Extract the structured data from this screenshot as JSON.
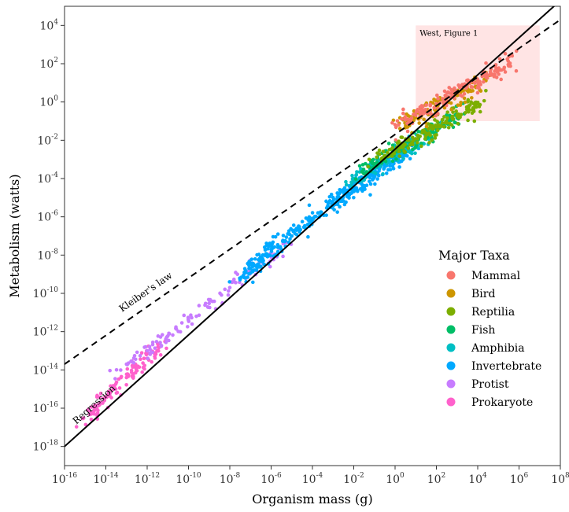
{
  "chart_data": {
    "type": "scatter",
    "xlabel": "Organism mass (g)",
    "ylabel": "Metabolism (watts)",
    "x_scale": "log10",
    "y_scale": "log10",
    "xlim": [
      1e-16,
      100000000.0
    ],
    "ylim": [
      1e-19,
      100000.0
    ],
    "x_ticks": [
      {
        "base": "10",
        "exp": "-16",
        "value": 1e-16
      },
      {
        "base": "10",
        "exp": "-14",
        "value": 1e-14
      },
      {
        "base": "10",
        "exp": "-12",
        "value": 1e-12
      },
      {
        "base": "10",
        "exp": "-10",
        "value": 1e-10
      },
      {
        "base": "10",
        "exp": "-8",
        "value": 1e-08
      },
      {
        "base": "10",
        "exp": "-6",
        "value": 1e-06
      },
      {
        "base": "10",
        "exp": "-4",
        "value": 0.0001
      },
      {
        "base": "10",
        "exp": "-2",
        "value": 0.01
      },
      {
        "base": "10",
        "exp": "0",
        "value": 1
      },
      {
        "base": "10",
        "exp": "2",
        "value": 100.0
      },
      {
        "base": "10",
        "exp": "4",
        "value": 10000.0
      },
      {
        "base": "10",
        "exp": "6",
        "value": 1000000.0
      },
      {
        "base": "10",
        "exp": "8",
        "value": 100000000.0
      }
    ],
    "y_ticks": [
      {
        "base": "10",
        "exp": "-18",
        "value": 1e-18
      },
      {
        "base": "10",
        "exp": "-16",
        "value": 1e-16
      },
      {
        "base": "10",
        "exp": "-14",
        "value": 1e-14
      },
      {
        "base": "10",
        "exp": "-12",
        "value": 1e-12
      },
      {
        "base": "10",
        "exp": "-10",
        "value": 1e-10
      },
      {
        "base": "10",
        "exp": "-8",
        "value": 1e-08
      },
      {
        "base": "10",
        "exp": "-6",
        "value": 1e-06
      },
      {
        "base": "10",
        "exp": "-4",
        "value": 0.0001
      },
      {
        "base": "10",
        "exp": "-2",
        "value": 0.01
      },
      {
        "base": "10",
        "exp": "0",
        "value": 1
      },
      {
        "base": "10",
        "exp": "2",
        "value": 100.0
      },
      {
        "base": "10",
        "exp": "4",
        "value": 10000.0
      }
    ],
    "legend": {
      "title": "Major Taxa",
      "placement": "right"
    },
    "series": [
      {
        "name": "Mammal",
        "color": "#F8766D",
        "x": [
          3,
          10,
          30,
          100,
          300,
          1000,
          3000,
          10000,
          30000,
          100000,
          300000
        ],
        "y": [
          0.12,
          0.2,
          0.4,
          0.8,
          1.5,
          3,
          6,
          12,
          25,
          50,
          90
        ]
      },
      {
        "name": "Bird",
        "color": "#CD9600",
        "x": [
          3,
          10,
          30,
          100,
          300,
          1000,
          3000,
          10000
        ],
        "y": [
          0.08,
          0.15,
          0.3,
          0.6,
          1.2,
          2.2,
          4,
          7
        ]
      },
      {
        "name": "Reptilia",
        "color": "#7CAE00",
        "x": [
          0.3,
          1,
          3,
          10,
          30,
          100,
          300,
          1000,
          3000,
          10000
        ],
        "y": [
          0.0015,
          0.003,
          0.006,
          0.012,
          0.025,
          0.05,
          0.1,
          0.2,
          0.4,
          0.8
        ]
      },
      {
        "name": "Fish",
        "color": "#00BE67",
        "x": [
          0.03,
          0.1,
          0.3,
          1,
          3,
          10,
          30,
          100,
          300,
          1000
        ],
        "y": [
          0.0003,
          0.0006,
          0.0012,
          0.0025,
          0.005,
          0.01,
          0.02,
          0.04,
          0.08,
          0.15
        ]
      },
      {
        "name": "Amphibia",
        "color": "#00BFC4",
        "x": [
          0.01,
          0.03,
          0.1,
          0.3,
          1,
          3,
          10,
          30
        ],
        "y": [
          8e-05,
          0.0002,
          0.0005,
          0.001,
          0.002,
          0.004,
          0.008,
          0.015
        ]
      },
      {
        "name": "Invertebrate",
        "color": "#00A9FF",
        "x": [
          1e-07,
          3e-07,
          1e-06,
          1e-05,
          0.0001,
          0.001,
          0.003,
          0.01,
          0.03,
          0.1,
          0.3,
          1,
          3
        ],
        "y": [
          2e-09,
          5e-09,
          2e-08,
          1e-07,
          8e-07,
          5e-06,
          1e-05,
          3e-05,
          8e-05,
          0.0002,
          0.0005,
          0.001,
          0.002
        ]
      },
      {
        "name": "Protist",
        "color": "#C77CFF",
        "x": [
          1e-13,
          1e-12,
          1e-11,
          1e-10,
          1e-09,
          1e-08,
          1e-07,
          1e-06
        ],
        "y": [
          2e-14,
          1e-13,
          6e-13,
          4e-12,
          3e-11,
          2e-10,
          1.5e-09,
          8e-09
        ]
      },
      {
        "name": "Prokaryote",
        "color": "#FF61CC",
        "x": [
          2e-15,
          5e-15,
          1e-14,
          3e-14,
          1e-13,
          3e-13,
          1e-12,
          3e-12
        ],
        "y": [
          5e-17,
          1.5e-16,
          4e-16,
          1e-15,
          4e-15,
          1e-14,
          4e-14,
          1e-13
        ]
      }
    ],
    "lines": [
      {
        "label": "Regression",
        "style": "solid",
        "x": [
          1e-16,
          100000000.0
        ],
        "y": [
          1e-18,
          200000.0
        ]
      },
      {
        "label": "Kleiber's law",
        "style": "dashed",
        "x": [
          1e-16,
          100000000.0
        ],
        "y": [
          2e-14,
          20000.0
        ]
      }
    ],
    "highlight_box": {
      "label": "West, Figure 1",
      "x": [
        10,
        10000000.0
      ],
      "y": [
        0.1,
        10000.0
      ],
      "color": "#FFE4E4"
    }
  }
}
